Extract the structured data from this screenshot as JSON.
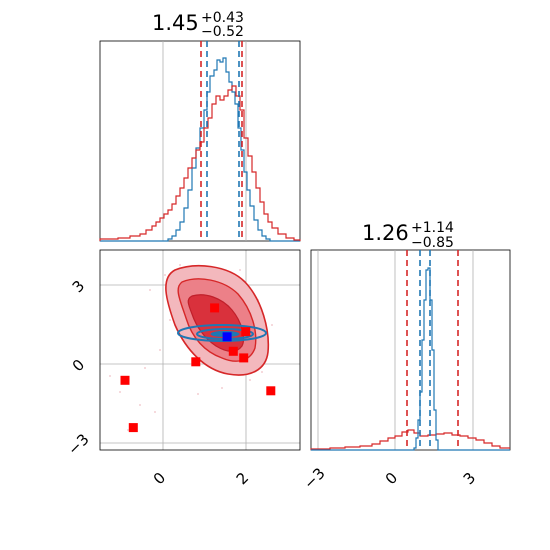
{
  "chart_data": [
    {
      "type": "histogram",
      "panel": "top-left",
      "title": {
        "value": "1.45",
        "upper": "+0.43",
        "lower": "−0.52"
      },
      "xlim": [
        -1.6,
        3.2
      ],
      "grid": true,
      "series": [
        {
          "name": "",
          "color": "#1f77b4",
          "quantile_lines": [
            1.05,
            1.85
          ]
        },
        {
          "name": "",
          "color": "#d62728",
          "quantile_lines": [
            0.93,
            1.88
          ]
        }
      ]
    },
    {
      "type": "scatter",
      "panel": "bottom-left",
      "xlim": [
        -1.6,
        3.2
      ],
      "ylim": [
        -3.2,
        4.4
      ],
      "xticks": [
        "0",
        "2"
      ],
      "yticks": [
        "3",
        "0",
        "−3"
      ],
      "grid": true,
      "red_points": [
        [
          1.15,
          2.2
        ],
        [
          1.9,
          1.3
        ],
        [
          1.6,
          0.55
        ],
        [
          1.85,
          0.3
        ],
        [
          0.7,
          0.15
        ],
        [
          -1.0,
          -0.55
        ],
        [
          -0.8,
          -2.35
        ],
        [
          2.5,
          -0.95
        ]
      ],
      "blue_points": [
        [
          1.45,
          1.1
        ]
      ],
      "colors": {
        "red": "#d62728",
        "blue": "#1f77b4",
        "marker_red": "#ff0000",
        "marker_blue": "#0000ff"
      }
    },
    {
      "type": "histogram",
      "panel": "bottom-right",
      "title": {
        "value": "1.26",
        "upper": "+1.14",
        "lower": "−0.85"
      },
      "xlim": [
        -3.4,
        4.4
      ],
      "xticks": [
        "−3",
        "0",
        "3"
      ],
      "grid": true,
      "series": [
        {
          "name": "",
          "color": "#1f77b4",
          "quantile_lines": [
            1.0,
            1.38
          ]
        },
        {
          "name": "",
          "color": "#d62728",
          "quantile_lines": [
            0.41,
            2.4
          ]
        }
      ]
    }
  ]
}
